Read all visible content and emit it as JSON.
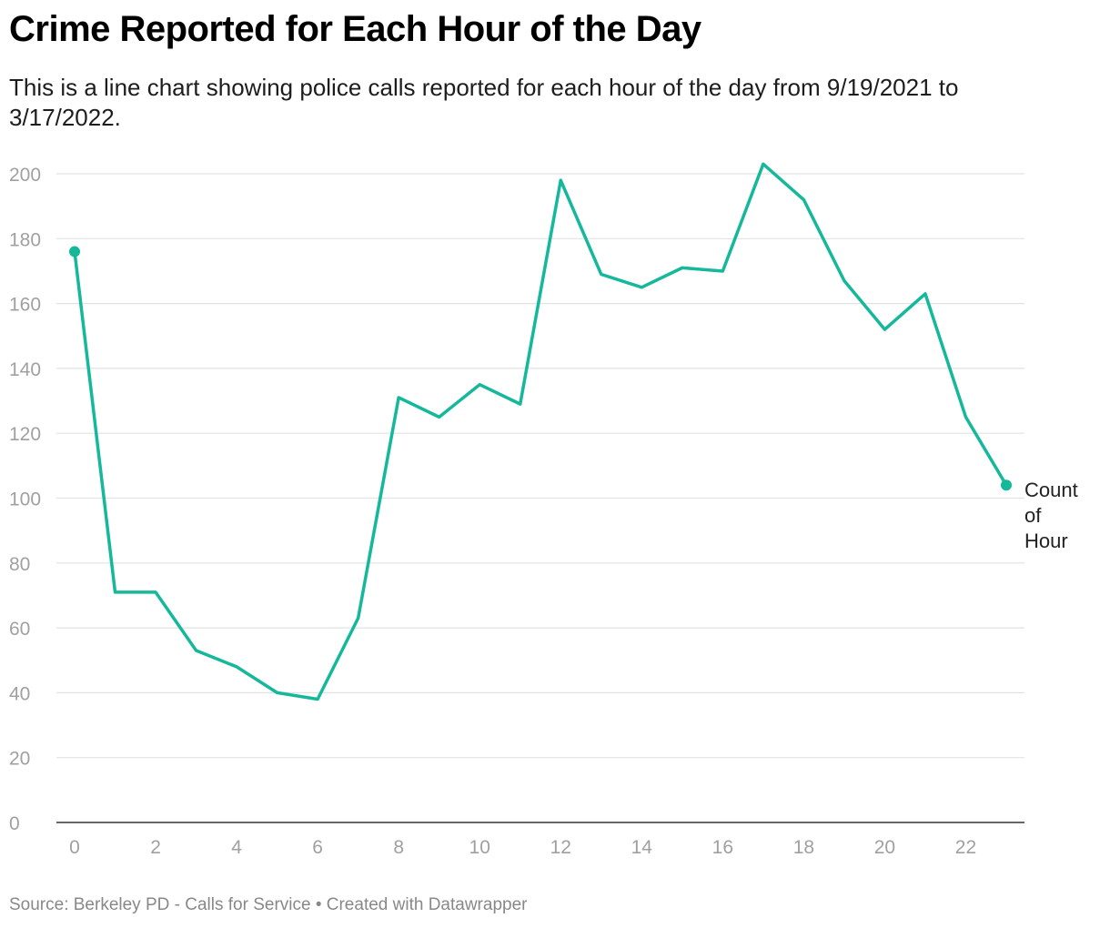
{
  "title": "Crime Reported for Each Hour of the Day",
  "subtitle": "This is a line chart showing police calls reported for each hour of the day from 9/19/2021 to 3/17/2022.",
  "footer": "Source: Berkeley PD - Calls for Service • Created with Datawrapper",
  "colors": {
    "line": "#15b89a",
    "grid": "#e2e2e2",
    "tick_label": "#a0a0a0",
    "baseline": "#333333"
  },
  "chart_data": {
    "type": "line",
    "x": [
      0,
      1,
      2,
      3,
      4,
      5,
      6,
      7,
      8,
      9,
      10,
      11,
      12,
      13,
      14,
      15,
      16,
      17,
      18,
      19,
      20,
      21,
      22,
      23
    ],
    "series": [
      {
        "name": "Count of Hour",
        "values": [
          176,
          71,
          71,
          53,
          48,
          40,
          38,
          63,
          131,
          125,
          135,
          129,
          198,
          169,
          165,
          171,
          170,
          203,
          192,
          167,
          152,
          163,
          125,
          104
        ]
      }
    ],
    "series_label_lines": [
      "Count",
      "of",
      "Hour"
    ],
    "xlim": [
      0,
      23
    ],
    "ylim": [
      0,
      200
    ],
    "x_ticks": [
      0,
      2,
      4,
      6,
      8,
      10,
      12,
      14,
      16,
      18,
      20,
      22
    ],
    "y_ticks": [
      0,
      20,
      40,
      60,
      80,
      100,
      120,
      140,
      160,
      180,
      200
    ],
    "grid": true,
    "endpoint_markers": true,
    "legend": "direct label at line end (right)"
  }
}
